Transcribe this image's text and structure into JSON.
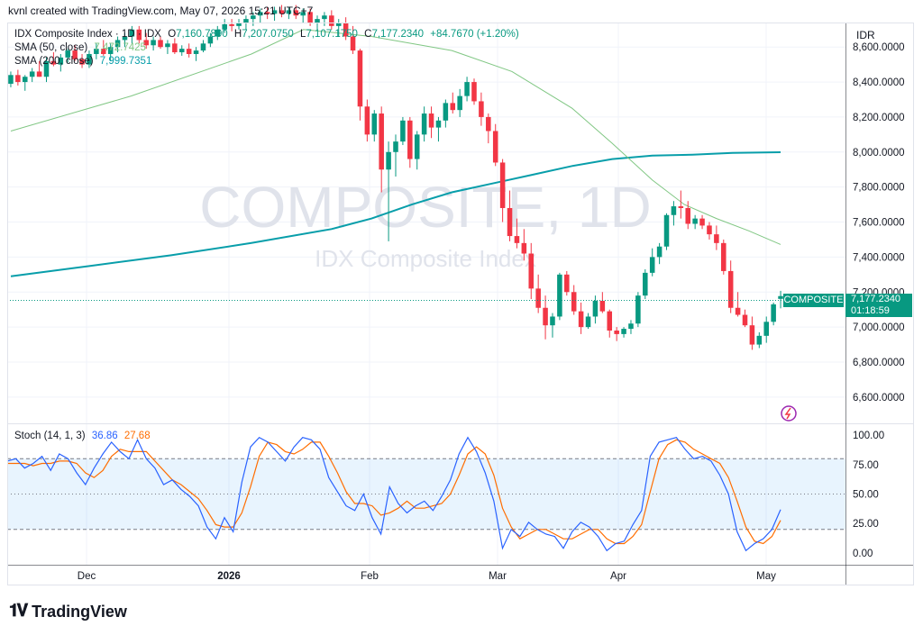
{
  "header": {
    "author_line": "kvnl created with TradingView.com, May 07, 2026 15:21 UTC+7"
  },
  "legend": {
    "symbol": "IDX Composite Index · 1D · IDX",
    "ohlc": {
      "o_label": "O",
      "o": "7,160.7890",
      "h_label": "H",
      "h": "7,207.0750",
      "l_label": "L",
      "l": "7,107.1750",
      "c_label": "C",
      "c": "7,177.2340",
      "chg": "+84.7670 (+1.20%)"
    },
    "sma50_label": "SMA (50, close)",
    "sma50_value": "7,472.7425",
    "sma200_label": "SMA (200, close)",
    "sma200_value": "7,999.7351",
    "stoch_label": "Stoch (14, 1, 3)",
    "stoch_k": "36.86",
    "stoch_d": "27.68"
  },
  "watermark": {
    "main": "COMPOSITE, 1D",
    "sub": "IDX Composite Index"
  },
  "price_axis": {
    "unit": "IDR",
    "ticks": [
      "8,600.0000",
      "8,400.0000",
      "8,200.0000",
      "8,000.0000",
      "7,800.0000",
      "7,600.0000",
      "7,400.0000",
      "7,200.0000",
      "7,000.0000",
      "6,800.0000",
      "6,600.0000"
    ],
    "tag_name": "COMPOSITE",
    "tag_price": "7,177.2340",
    "tag_countdown": "01:18:59"
  },
  "stoch_axis": {
    "ticks": [
      "100.00",
      "75.00",
      "50.00",
      "25.00",
      "0.00"
    ]
  },
  "time_axis": {
    "ticks": [
      "Dec",
      "2026",
      "Feb",
      "Mar",
      "Apr",
      "May"
    ]
  },
  "brand": {
    "name": "TradingView"
  },
  "colors": {
    "up": "#089981",
    "down": "#f23645",
    "sma50": "#81c784",
    "sma200": "#089eaa",
    "stoch_k": "#2962ff",
    "stoch_d": "#ff6d00"
  },
  "chart_data": {
    "type": "candlestick",
    "price_range": [
      6450,
      8740
    ],
    "stoch_range": [
      -10,
      110
    ],
    "candles": [
      [
        8390,
        8460,
        8370,
        8440
      ],
      [
        8440,
        8470,
        8380,
        8400
      ],
      [
        8400,
        8440,
        8350,
        8430
      ],
      [
        8430,
        8480,
        8400,
        8460
      ],
      [
        8460,
        8520,
        8430,
        8430
      ],
      [
        8430,
        8540,
        8400,
        8520
      ],
      [
        8520,
        8570,
        8490,
        8500
      ],
      [
        8500,
        8560,
        8460,
        8540
      ],
      [
        8540,
        8590,
        8510,
        8580
      ],
      [
        8580,
        8610,
        8520,
        8530
      ],
      [
        8530,
        8560,
        8480,
        8500
      ],
      [
        8500,
        8580,
        8480,
        8560
      ],
      [
        8560,
        8620,
        8530,
        8590
      ],
      [
        8590,
        8640,
        8550,
        8560
      ],
      [
        8560,
        8620,
        8520,
        8600
      ],
      [
        8600,
        8660,
        8570,
        8640
      ],
      [
        8640,
        8680,
        8600,
        8660
      ],
      [
        8660,
        8720,
        8620,
        8700
      ],
      [
        8700,
        8720,
        8620,
        8640
      ],
      [
        8640,
        8680,
        8590,
        8610
      ],
      [
        8610,
        8660,
        8580,
        8640
      ],
      [
        8640,
        8660,
        8590,
        8600
      ],
      [
        8600,
        8640,
        8560,
        8620
      ],
      [
        8620,
        8650,
        8560,
        8570
      ],
      [
        8570,
        8610,
        8550,
        8590
      ],
      [
        8590,
        8620,
        8540,
        8560
      ],
      [
        8560,
        8600,
        8520,
        8580
      ],
      [
        8580,
        8640,
        8570,
        8620
      ],
      [
        8620,
        8680,
        8600,
        8660
      ],
      [
        8660,
        8720,
        8640,
        8700
      ],
      [
        8700,
        8760,
        8680,
        8730
      ],
      [
        8730,
        8760,
        8690,
        8720
      ],
      [
        8720,
        8760,
        8700,
        8740
      ],
      [
        8740,
        8780,
        8700,
        8760
      ],
      [
        8760,
        8800,
        8720,
        8780
      ],
      [
        8780,
        8820,
        8740,
        8800
      ],
      [
        8800,
        8830,
        8760,
        8790
      ],
      [
        8790,
        8830,
        8750,
        8810
      ],
      [
        8810,
        8840,
        8770,
        8790
      ],
      [
        8790,
        8830,
        8760,
        8810
      ],
      [
        8810,
        8840,
        8760,
        8780
      ],
      [
        8780,
        8820,
        8740,
        8800
      ],
      [
        8800,
        8820,
        8720,
        8740
      ],
      [
        8740,
        8780,
        8700,
        8760
      ],
      [
        8760,
        8800,
        8720,
        8780
      ],
      [
        8780,
        8810,
        8700,
        8720
      ],
      [
        8720,
        8760,
        8660,
        8740
      ],
      [
        8740,
        8770,
        8640,
        8660
      ],
      [
        8660,
        8720,
        8560,
        8580
      ],
      [
        8580,
        8590,
        8180,
        8260
      ],
      [
        8260,
        8300,
        8060,
        8100
      ],
      [
        8100,
        8240,
        8060,
        8220
      ],
      [
        8220,
        8260,
        7770,
        7900
      ],
      [
        7900,
        8060,
        7490,
        8000
      ],
      [
        8000,
        8100,
        7860,
        8060
      ],
      [
        8060,
        8200,
        8040,
        8180
      ],
      [
        8180,
        8200,
        7910,
        7960
      ],
      [
        7960,
        8120,
        7900,
        8100
      ],
      [
        8100,
        8260,
        8060,
        8220
      ],
      [
        8220,
        8260,
        8080,
        8140
      ],
      [
        8140,
        8200,
        8060,
        8180
      ],
      [
        8180,
        8300,
        8140,
        8280
      ],
      [
        8280,
        8340,
        8220,
        8240
      ],
      [
        8240,
        8360,
        8200,
        8320
      ],
      [
        8320,
        8430,
        8290,
        8400
      ],
      [
        8400,
        8420,
        8270,
        8290
      ],
      [
        8290,
        8340,
        8150,
        8200
      ],
      [
        8200,
        8220,
        8050,
        8120
      ],
      [
        8120,
        8160,
        7920,
        7940
      ],
      [
        7940,
        7960,
        7600,
        7680
      ],
      [
        7680,
        7780,
        7490,
        7520
      ],
      [
        7520,
        7620,
        7450,
        7480
      ],
      [
        7480,
        7560,
        7380,
        7420
      ],
      [
        7420,
        7480,
        7160,
        7220
      ],
      [
        7220,
        7300,
        7080,
        7110
      ],
      [
        7110,
        7180,
        6930,
        7010
      ],
      [
        7010,
        7080,
        6940,
        7060
      ],
      [
        7060,
        7310,
        7040,
        7300
      ],
      [
        7300,
        7320,
        7180,
        7200
      ],
      [
        7200,
        7240,
        7070,
        7090
      ],
      [
        7090,
        7140,
        6960,
        7000
      ],
      [
        7000,
        7080,
        6990,
        7060
      ],
      [
        7060,
        7180,
        7020,
        7150
      ],
      [
        7150,
        7200,
        7080,
        7090
      ],
      [
        7090,
        7100,
        6940,
        6980
      ],
      [
        6980,
        7000,
        6920,
        6960
      ],
      [
        6960,
        7000,
        6940,
        6990
      ],
      [
        6990,
        7040,
        6960,
        7020
      ],
      [
        7020,
        7200,
        7000,
        7180
      ],
      [
        7180,
        7330,
        7160,
        7310
      ],
      [
        7310,
        7450,
        7290,
        7400
      ],
      [
        7400,
        7480,
        7360,
        7460
      ],
      [
        7460,
        7650,
        7440,
        7640
      ],
      [
        7640,
        7720,
        7580,
        7690
      ],
      [
        7690,
        7780,
        7620,
        7680
      ],
      [
        7680,
        7720,
        7560,
        7590
      ],
      [
        7590,
        7640,
        7560,
        7620
      ],
      [
        7620,
        7640,
        7560,
        7580
      ],
      [
        7580,
        7600,
        7500,
        7530
      ],
      [
        7530,
        7580,
        7440,
        7480
      ],
      [
        7480,
        7500,
        7300,
        7320
      ],
      [
        7320,
        7380,
        7080,
        7110
      ],
      [
        7110,
        7200,
        7060,
        7070
      ],
      [
        7070,
        7100,
        7000,
        7010
      ],
      [
        7010,
        7060,
        6870,
        6900
      ],
      [
        6900,
        6970,
        6880,
        6950
      ],
      [
        6950,
        7060,
        6910,
        7030
      ],
      [
        7030,
        7140,
        7010,
        7130
      ],
      [
        7161,
        7207,
        7107,
        7177
      ]
    ],
    "sma50": [
      [
        0,
        8120
      ],
      [
        30,
        8320
      ],
      [
        60,
        8560
      ],
      [
        73,
        8700
      ],
      [
        90,
        8660
      ],
      [
        110,
        8580
      ],
      [
        125,
        8460
      ],
      [
        140,
        8250
      ],
      [
        150,
        8050
      ],
      [
        160,
        7840
      ],
      [
        168,
        7700
      ],
      [
        176,
        7620
      ],
      [
        184,
        7550
      ],
      [
        192,
        7472
      ]
    ],
    "sma200": [
      [
        0,
        7290
      ],
      [
        20,
        7350
      ],
      [
        40,
        7410
      ],
      [
        60,
        7480
      ],
      [
        80,
        7560
      ],
      [
        90,
        7620
      ],
      [
        100,
        7700
      ],
      [
        110,
        7770
      ],
      [
        120,
        7820
      ],
      [
        130,
        7870
      ],
      [
        140,
        7920
      ],
      [
        150,
        7960
      ],
      [
        160,
        7980
      ],
      [
        170,
        7985
      ],
      [
        180,
        7995
      ],
      [
        192,
        7999
      ]
    ],
    "stoch_k": [
      78,
      80,
      72,
      76,
      82,
      70,
      84,
      80,
      68,
      58,
      72,
      84,
      94,
      86,
      80,
      96,
      80,
      72,
      58,
      62,
      54,
      48,
      40,
      22,
      12,
      30,
      18,
      60,
      90,
      98,
      94,
      86,
      78,
      90,
      98,
      96,
      88,
      64,
      52,
      40,
      36,
      50,
      30,
      16,
      56,
      42,
      34,
      40,
      44,
      36,
      48,
      62,
      84,
      98,
      86,
      68,
      44,
      4,
      20,
      14,
      26,
      20,
      16,
      14,
      4,
      18,
      26,
      22,
      14,
      2,
      8,
      10,
      24,
      36,
      82,
      94,
      96,
      98,
      88,
      80,
      82,
      78,
      66,
      50,
      18,
      2,
      8,
      12,
      20,
      36.86
    ],
    "stoch_d": [
      76,
      76,
      76,
      74,
      76,
      76,
      78,
      78,
      76,
      68,
      64,
      70,
      82,
      88,
      86,
      86,
      86,
      78,
      70,
      62,
      58,
      52,
      46,
      36,
      24,
      22,
      22,
      34,
      56,
      82,
      94,
      92,
      86,
      84,
      88,
      94,
      94,
      82,
      68,
      52,
      42,
      42,
      40,
      32,
      34,
      38,
      44,
      38,
      38,
      40,
      42,
      50,
      66,
      84,
      90,
      84,
      66,
      38,
      22,
      12,
      16,
      20,
      20,
      16,
      12,
      12,
      16,
      20,
      20,
      12,
      8,
      8,
      14,
      24,
      52,
      80,
      92,
      96,
      94,
      88,
      84,
      80,
      76,
      64,
      44,
      22,
      10,
      8,
      14,
      27.68
    ]
  }
}
